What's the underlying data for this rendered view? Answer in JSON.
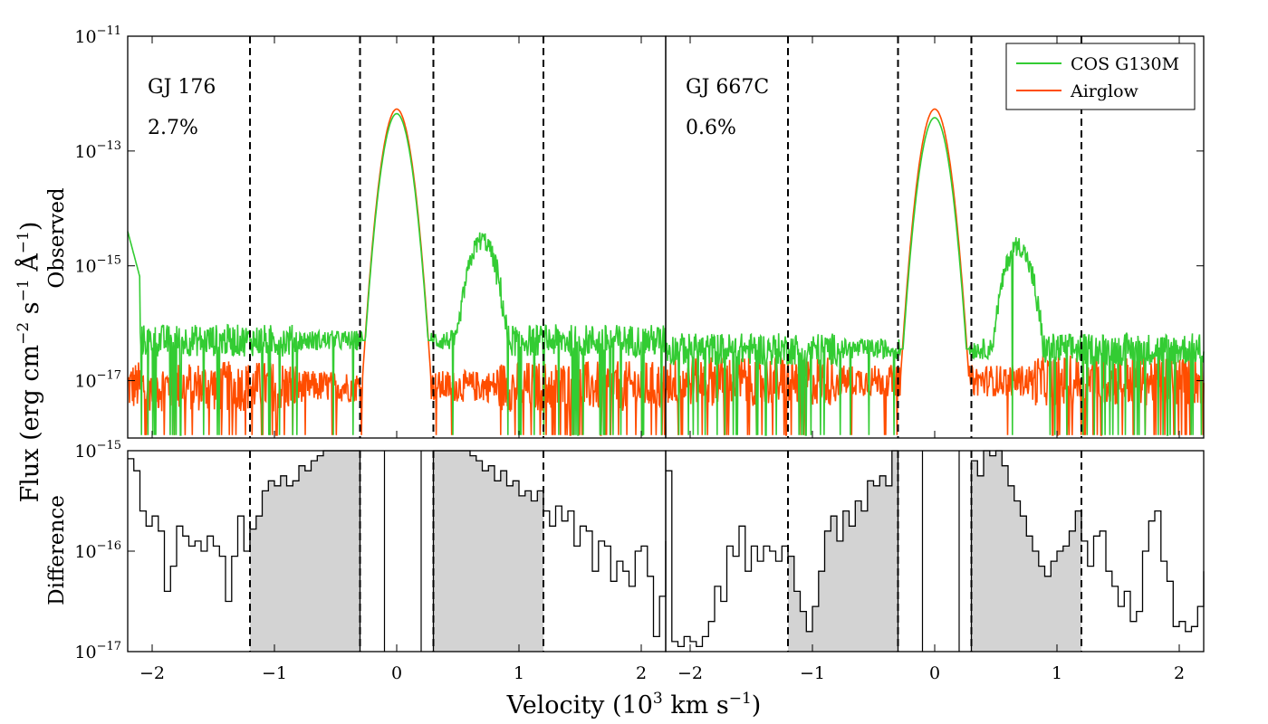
{
  "chart_data": {
    "type": "line",
    "xlabel_main": "Velocity (10",
    "xlabel_exp": "3",
    "xlabel_tail": " km s",
    "xlabel_tail_exp": "−1",
    "xlabel_close": ")",
    "ylabel_flux": "Flux (erg cm",
    "ylabel_flux_exp1": "−2",
    "ylabel_flux_mid": " s",
    "ylabel_flux_exp2": "−1",
    "ylabel_flux_ang": " Å",
    "ylabel_flux_exp3": "−1",
    "ylabel_flux_close": ")",
    "ylabel_observed": "Observed",
    "ylabel_difference": "Difference",
    "xlim": [
      -2.2,
      2.2
    ],
    "xticks": [
      -2,
      -1,
      0,
      1,
      2
    ],
    "xtick_labels": [
      "−2",
      "−1",
      "0",
      "1",
      "2"
    ],
    "top_ylim_log": [
      -18,
      -11
    ],
    "top_yticks_exp": [
      -11,
      -13,
      -15,
      -17
    ],
    "bottom_ylim_log": [
      -17,
      -15
    ],
    "bottom_yticks_exp": [
      -15,
      -16,
      -17
    ],
    "tick_base": "10",
    "tick_minus": "−",
    "legend": {
      "position": "top-right",
      "entries": [
        {
          "label": "COS G130M",
          "color": "#33cc33"
        },
        {
          "label": "Airglow",
          "color": "#ff4d00"
        }
      ]
    },
    "dashed_lines": [
      -1.2,
      -0.3,
      0.3,
      1.2
    ],
    "gap_lines": [
      -0.1,
      0.2
    ],
    "panels": [
      {
        "name": "GJ 176",
        "percent": "2.7%",
        "cos_peak_log": -12.35,
        "air_peak_log": -12.27,
        "cos_base_log": -16.3,
        "air_base_log": -17.1,
        "bump_pos": 0.7,
        "bump_log": -14.55,
        "diff": [
          [
            -2.2,
            -15.08
          ],
          [
            -2.15,
            -15.2
          ],
          [
            -2.1,
            -15.6
          ],
          [
            -2.05,
            -15.75
          ],
          [
            -2.0,
            -15.65
          ],
          [
            -1.95,
            -15.8
          ],
          [
            -1.9,
            -16.4
          ],
          [
            -1.85,
            -16.15
          ],
          [
            -1.8,
            -15.75
          ],
          [
            -1.75,
            -15.85
          ],
          [
            -1.7,
            -15.95
          ],
          [
            -1.65,
            -15.9
          ],
          [
            -1.6,
            -16.0
          ],
          [
            -1.55,
            -15.85
          ],
          [
            -1.5,
            -15.95
          ],
          [
            -1.45,
            -16.05
          ],
          [
            -1.4,
            -16.5
          ],
          [
            -1.35,
            -16.05
          ],
          [
            -1.3,
            -15.65
          ],
          [
            -1.25,
            -16.0
          ],
          [
            -1.2,
            -15.78
          ],
          [
            -1.15,
            -15.65
          ],
          [
            -1.1,
            -15.4
          ],
          [
            -1.05,
            -15.3
          ],
          [
            -1.0,
            -15.35
          ],
          [
            -0.95,
            -15.25
          ],
          [
            -0.9,
            -15.35
          ],
          [
            -0.85,
            -15.3
          ],
          [
            -0.8,
            -15.15
          ],
          [
            -0.75,
            -15.2
          ],
          [
            -0.7,
            -15.1
          ],
          [
            -0.65,
            -15.05
          ],
          [
            -0.6,
            -15.0
          ],
          [
            -0.55,
            -15.0
          ],
          [
            -0.5,
            -15.0
          ],
          [
            -0.45,
            -15.0
          ],
          [
            -0.4,
            -15.0
          ],
          [
            -0.35,
            -15.0
          ],
          [
            0.3,
            -15.0
          ],
          [
            0.35,
            -15.0
          ],
          [
            0.4,
            -15.0
          ],
          [
            0.45,
            -15.0
          ],
          [
            0.5,
            -15.0
          ],
          [
            0.55,
            -15.0
          ],
          [
            0.6,
            -15.05
          ],
          [
            0.65,
            -15.1
          ],
          [
            0.7,
            -15.2
          ],
          [
            0.75,
            -15.15
          ],
          [
            0.8,
            -15.3
          ],
          [
            0.85,
            -15.2
          ],
          [
            0.9,
            -15.35
          ],
          [
            0.95,
            -15.3
          ],
          [
            1.0,
            -15.45
          ],
          [
            1.05,
            -15.4
          ],
          [
            1.1,
            -15.5
          ],
          [
            1.15,
            -15.4
          ],
          [
            1.2,
            -15.6
          ],
          [
            1.25,
            -15.75
          ],
          [
            1.3,
            -15.55
          ],
          [
            1.35,
            -15.7
          ],
          [
            1.4,
            -15.6
          ],
          [
            1.45,
            -15.95
          ],
          [
            1.5,
            -15.75
          ],
          [
            1.55,
            -15.8
          ],
          [
            1.6,
            -16.2
          ],
          [
            1.65,
            -15.9
          ],
          [
            1.7,
            -15.95
          ],
          [
            1.75,
            -16.3
          ],
          [
            1.8,
            -16.1
          ],
          [
            1.85,
            -16.2
          ],
          [
            1.9,
            -16.35
          ],
          [
            1.95,
            -16.0
          ],
          [
            2.0,
            -15.95
          ],
          [
            2.05,
            -16.25
          ],
          [
            2.1,
            -16.85
          ],
          [
            2.15,
            -16.45
          ],
          [
            2.2,
            -15.9
          ]
        ]
      },
      {
        "name": "GJ 667C",
        "percent": "0.6%",
        "cos_peak_log": -12.42,
        "air_peak_log": -12.27,
        "cos_base_log": -16.45,
        "air_base_log": -17.0,
        "bump_pos": 0.68,
        "bump_log": -14.65,
        "diff": [
          [
            -2.2,
            -15.2
          ],
          [
            -2.15,
            -16.9
          ],
          [
            -2.1,
            -16.95
          ],
          [
            -2.05,
            -16.85
          ],
          [
            -2.0,
            -16.9
          ],
          [
            -1.95,
            -16.95
          ],
          [
            -1.9,
            -16.85
          ],
          [
            -1.85,
            -16.7
          ],
          [
            -1.8,
            -16.35
          ],
          [
            -1.75,
            -16.5
          ],
          [
            -1.7,
            -15.95
          ],
          [
            -1.65,
            -16.05
          ],
          [
            -1.6,
            -15.75
          ],
          [
            -1.55,
            -16.2
          ],
          [
            -1.5,
            -15.95
          ],
          [
            -1.45,
            -16.1
          ],
          [
            -1.4,
            -15.95
          ],
          [
            -1.35,
            -16.0
          ],
          [
            -1.3,
            -16.1
          ],
          [
            -1.25,
            -15.95
          ],
          [
            -1.2,
            -16.05
          ],
          [
            -1.15,
            -16.4
          ],
          [
            -1.1,
            -16.6
          ],
          [
            -1.05,
            -16.8
          ],
          [
            -1.0,
            -16.55
          ],
          [
            -0.95,
            -16.2
          ],
          [
            -0.9,
            -15.8
          ],
          [
            -0.85,
            -15.65
          ],
          [
            -0.8,
            -15.9
          ],
          [
            -0.75,
            -15.6
          ],
          [
            -0.7,
            -15.75
          ],
          [
            -0.65,
            -15.5
          ],
          [
            -0.6,
            -15.6
          ],
          [
            -0.55,
            -15.3
          ],
          [
            -0.5,
            -15.35
          ],
          [
            -0.45,
            -15.25
          ],
          [
            -0.4,
            -15.35
          ],
          [
            -0.35,
            -15.0
          ],
          [
            0.3,
            -15.1
          ],
          [
            0.35,
            -15.25
          ],
          [
            0.4,
            -15.0
          ],
          [
            0.45,
            -15.05
          ],
          [
            0.5,
            -15.0
          ],
          [
            0.55,
            -15.15
          ],
          [
            0.6,
            -15.35
          ],
          [
            0.65,
            -15.5
          ],
          [
            0.7,
            -15.65
          ],
          [
            0.75,
            -15.85
          ],
          [
            0.8,
            -16.0
          ],
          [
            0.85,
            -16.15
          ],
          [
            0.9,
            -16.25
          ],
          [
            0.95,
            -16.1
          ],
          [
            1.0,
            -16.0
          ],
          [
            1.05,
            -15.95
          ],
          [
            1.1,
            -15.8
          ],
          [
            1.15,
            -15.6
          ],
          [
            1.2,
            -15.9
          ],
          [
            1.25,
            -16.15
          ],
          [
            1.3,
            -15.85
          ],
          [
            1.35,
            -15.8
          ],
          [
            1.4,
            -16.2
          ],
          [
            1.45,
            -16.35
          ],
          [
            1.5,
            -16.55
          ],
          [
            1.55,
            -16.4
          ],
          [
            1.6,
            -16.7
          ],
          [
            1.65,
            -16.6
          ],
          [
            1.7,
            -16.0
          ],
          [
            1.75,
            -15.7
          ],
          [
            1.8,
            -15.6
          ],
          [
            1.85,
            -16.1
          ],
          [
            1.9,
            -16.3
          ],
          [
            1.95,
            -16.75
          ],
          [
            2.0,
            -16.7
          ],
          [
            2.05,
            -16.8
          ],
          [
            2.1,
            -16.75
          ],
          [
            2.15,
            -16.55
          ],
          [
            2.2,
            -16.2
          ]
        ]
      }
    ]
  }
}
